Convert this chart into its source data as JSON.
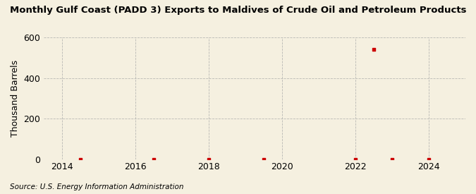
{
  "title": "Monthly Gulf Coast (PADD 3) Exports to Maldives of Crude Oil and Petroleum Products",
  "ylabel": "Thousand Barrels",
  "source": "Source: U.S. Energy Information Administration",
  "background_color": "#f5f0e0",
  "marker_color": "#cc0000",
  "grid_color": "#aaaaaa",
  "xlim": [
    2013.5,
    2025.0
  ],
  "ylim": [
    0,
    600
  ],
  "yticks": [
    0,
    200,
    400,
    600
  ],
  "xticks": [
    2014,
    2016,
    2018,
    2020,
    2022,
    2024
  ],
  "data_x": [
    2014.5,
    2016.5,
    2018.0,
    2019.5,
    2022.0,
    2022.5,
    2023.0,
    2024.0
  ],
  "data_y": [
    0,
    0,
    0,
    0,
    0,
    540,
    0,
    0
  ]
}
